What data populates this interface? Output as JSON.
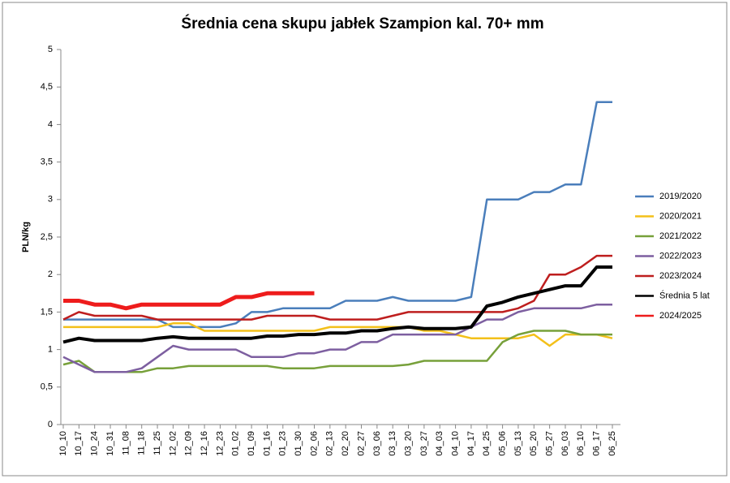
{
  "chart_data": {
    "type": "line",
    "title": "Średnia cena skupu jabłek Szampion kal. 70+ mm",
    "y_label": "PLN/kg",
    "categories": [
      "10_10",
      "10_17",
      "10_24",
      "10_31",
      "11_08",
      "11_18",
      "11_25",
      "12_02",
      "12_09",
      "12_16",
      "12_23",
      "01_02",
      "01_09",
      "01_16",
      "01_23",
      "01_30",
      "02_06",
      "02_13",
      "02_20",
      "02_27",
      "03_06",
      "03_13",
      "03_20",
      "03_27",
      "04_03",
      "04_10",
      "04_17",
      "04_25",
      "05_06",
      "05_13",
      "05_20",
      "05_27",
      "06_03",
      "06_10",
      "06_17",
      "06_25"
    ],
    "series": [
      {
        "name": "2019/2020",
        "color": "#4a7ebb",
        "width": 2.5,
        "values": [
          1.4,
          1.4,
          1.4,
          1.4,
          1.4,
          1.4,
          1.4,
          1.3,
          1.3,
          1.3,
          1.3,
          1.35,
          1.5,
          1.5,
          1.55,
          1.55,
          1.55,
          1.55,
          1.65,
          1.65,
          1.65,
          1.7,
          1.65,
          1.65,
          1.65,
          1.65,
          1.7,
          3.0,
          3.0,
          3.0,
          3.1,
          3.1,
          3.2,
          3.2,
          4.3,
          4.3
        ]
      },
      {
        "name": "2020/2021",
        "color": "#f3c01a",
        "width": 2.5,
        "values": [
          1.3,
          1.3,
          1.3,
          1.3,
          1.3,
          1.3,
          1.3,
          1.35,
          1.35,
          1.25,
          1.25,
          1.25,
          1.25,
          1.25,
          1.25,
          1.25,
          1.25,
          1.3,
          1.3,
          1.3,
          1.3,
          1.3,
          1.3,
          1.25,
          1.25,
          1.2,
          1.15,
          1.15,
          1.15,
          1.15,
          1.2,
          1.05,
          1.2,
          1.2,
          1.2,
          1.15
        ]
      },
      {
        "name": "2021/2022",
        "color": "#77a03a",
        "width": 2.5,
        "values": [
          0.8,
          0.85,
          0.7,
          0.7,
          0.7,
          0.7,
          0.75,
          0.75,
          0.78,
          0.78,
          0.78,
          0.78,
          0.78,
          0.78,
          0.75,
          0.75,
          0.75,
          0.78,
          0.78,
          0.78,
          0.78,
          0.78,
          0.8,
          0.85,
          0.85,
          0.85,
          0.85,
          0.85,
          1.1,
          1.2,
          1.25,
          1.25,
          1.25,
          1.2,
          1.2,
          1.2
        ]
      },
      {
        "name": "2022/2023",
        "color": "#7d5fa0",
        "width": 2.5,
        "values": [
          0.9,
          0.8,
          0.7,
          0.7,
          0.7,
          0.75,
          0.9,
          1.05,
          1.0,
          1.0,
          1.0,
          1.0,
          0.9,
          0.9,
          0.9,
          0.95,
          0.95,
          1.0,
          1.0,
          1.1,
          1.1,
          1.2,
          1.2,
          1.2,
          1.2,
          1.2,
          1.3,
          1.4,
          1.4,
          1.5,
          1.55,
          1.55,
          1.55,
          1.55,
          1.6,
          1.6
        ]
      },
      {
        "name": "2023/2024",
        "color": "#be1e1e",
        "width": 2.5,
        "values": [
          1.4,
          1.5,
          1.45,
          1.45,
          1.45,
          1.45,
          1.4,
          1.4,
          1.4,
          1.4,
          1.4,
          1.4,
          1.4,
          1.45,
          1.45,
          1.45,
          1.45,
          1.4,
          1.4,
          1.4,
          1.4,
          1.45,
          1.5,
          1.5,
          1.5,
          1.5,
          1.5,
          1.5,
          1.5,
          1.55,
          1.65,
          2.0,
          2.0,
          2.1,
          2.25,
          2.25
        ]
      },
      {
        "name": "Średnia 5 lat",
        "color": "#000000",
        "width": 4,
        "values": [
          1.1,
          1.15,
          1.12,
          1.12,
          1.12,
          1.12,
          1.15,
          1.17,
          1.15,
          1.15,
          1.15,
          1.15,
          1.15,
          1.18,
          1.18,
          1.2,
          1.2,
          1.22,
          1.22,
          1.25,
          1.25,
          1.28,
          1.3,
          1.28,
          1.28,
          1.28,
          1.3,
          1.58,
          1.63,
          1.7,
          1.75,
          1.8,
          1.85,
          1.85,
          2.1,
          2.1
        ]
      },
      {
        "name": "2024/2025",
        "color": "#ee1c1c",
        "width": 5,
        "values": [
          1.65,
          1.65,
          1.6,
          1.6,
          1.55,
          1.6,
          1.6,
          1.6,
          1.6,
          1.6,
          1.6,
          1.7,
          1.7,
          1.75,
          1.75,
          1.75,
          1.75,
          null,
          null,
          null,
          null,
          null,
          null,
          null,
          null,
          null,
          null,
          null,
          null,
          null,
          null,
          null,
          null,
          null,
          null,
          null
        ]
      }
    ],
    "ylim": [
      0,
      5
    ],
    "yticks": [
      0,
      {
        "value": 0.5,
        "label": "0,5"
      },
      1,
      {
        "value": 1.5,
        "label": "1,5"
      },
      2,
      {
        "value": 2.5,
        "label": "2,5"
      },
      3,
      {
        "value": 3.5,
        "label": "3,5"
      },
      4,
      {
        "value": 4.5,
        "label": "4,5"
      },
      5
    ],
    "grid": false,
    "legend": "right"
  }
}
